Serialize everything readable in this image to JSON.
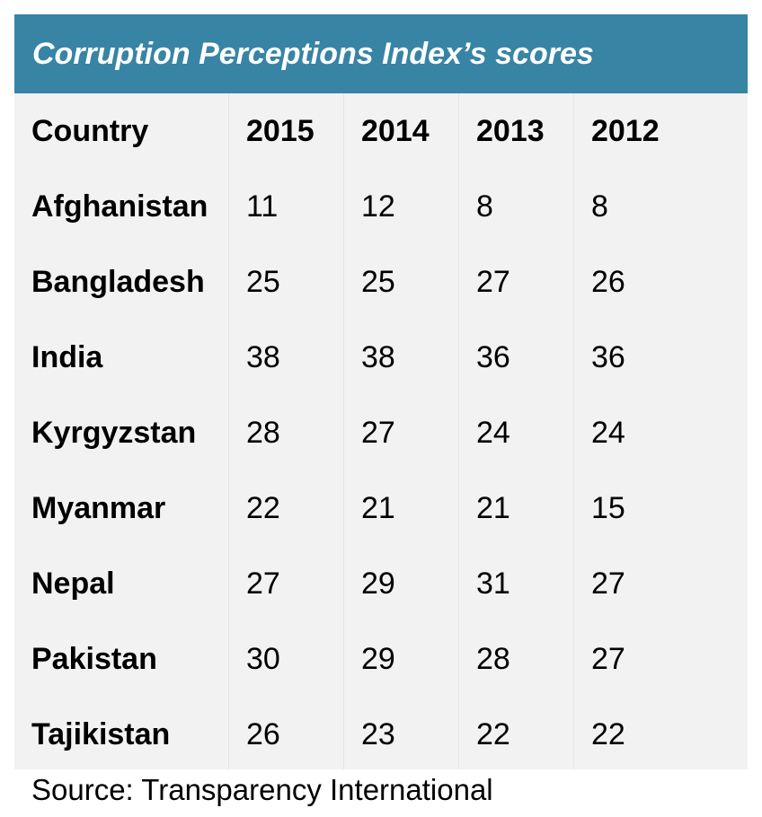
{
  "chart_data": {
    "type": "table",
    "title": "Corruption Perceptions Index’s scores",
    "columns": [
      "Country",
      "2015",
      "2014",
      "2013",
      "2012"
    ],
    "rows": [
      {
        "country": "Afghanistan",
        "values": [
          "11",
          "12",
          "8",
          "8"
        ]
      },
      {
        "country": "Bangladesh",
        "values": [
          "25",
          "25",
          "27",
          "26"
        ]
      },
      {
        "country": "India",
        "values": [
          "38",
          "38",
          "36",
          "36"
        ]
      },
      {
        "country": "Kyrgyzstan",
        "values": [
          "28",
          "27",
          "24",
          "24"
        ]
      },
      {
        "country": "Myanmar",
        "values": [
          "22",
          "21",
          "21",
          "15"
        ]
      },
      {
        "country": "Nepal",
        "values": [
          "27",
          "29",
          "31",
          "27"
        ]
      },
      {
        "country": "Pakistan",
        "values": [
          "30",
          "29",
          "28",
          "27"
        ]
      },
      {
        "country": "Tajikistan",
        "values": [
          "26",
          "23",
          "22",
          "22"
        ]
      }
    ],
    "source": "Source: Transparency International"
  },
  "colors": {
    "title_bar": "#3784a5",
    "table_background": "#f2f2f2"
  }
}
